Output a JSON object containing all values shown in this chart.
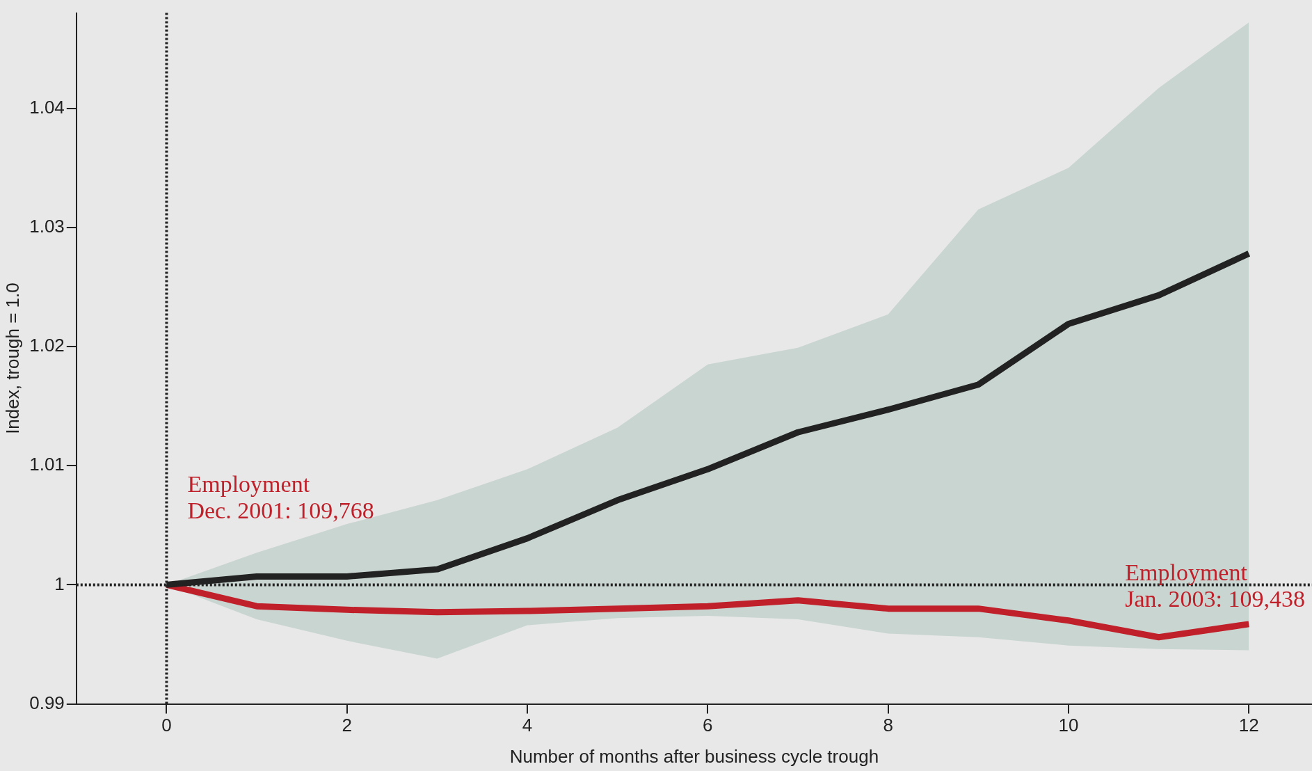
{
  "chart_data": {
    "type": "line",
    "xlabel": "Number of months after business cycle trough",
    "ylabel": "Index, trough = 1.0",
    "x": [
      0,
      1,
      2,
      3,
      4,
      5,
      6,
      7,
      8,
      9,
      10,
      11,
      12
    ],
    "series": [
      {
        "color": "#222222",
        "values": [
          1.0,
          1.0007,
          1.0007,
          1.0013,
          1.0039,
          1.0071,
          1.0097,
          1.0128,
          1.0147,
          1.0168,
          1.0219,
          1.0243,
          1.0278
        ],
        "lower": [
          1.0,
          0.9971,
          0.9953,
          0.9938,
          0.9966,
          0.9972,
          0.9974,
          0.9971,
          0.9959,
          0.9956,
          0.9949,
          0.9946,
          0.9945
        ],
        "upper": [
          1.0,
          1.0027,
          1.0051,
          1.0071,
          1.0097,
          1.0132,
          1.0185,
          1.0199,
          1.0227,
          1.0315,
          1.035,
          1.0417,
          1.0472
        ]
      },
      {
        "color": "#c0202a",
        "values": [
          1.0,
          0.9982,
          0.9979,
          0.9977,
          0.9978,
          0.998,
          0.9982,
          0.9987,
          0.998,
          0.998,
          0.997,
          0.9956,
          0.9967
        ]
      }
    ],
    "xlim": [
      -1,
      12.7
    ],
    "xticks": [
      0,
      2,
      4,
      6,
      8,
      10,
      12
    ],
    "ylim": [
      0.99,
      1.048
    ],
    "yticks": [
      0.99,
      1,
      1.01,
      1.02,
      1.03,
      1.04
    ],
    "ref_lines": [
      {
        "axis": "x",
        "value": 0,
        "line_style": "dotted"
      },
      {
        "axis": "y",
        "value": 1,
        "line_style": "dotted"
      }
    ],
    "annotations": [
      {
        "text": "Employment\nDec. 2001: 109,768",
        "x": 0,
        "y": 1.0
      },
      {
        "text": "Employment\nJan. 2003: 109,438",
        "x": 12,
        "y": 0.9967
      }
    ],
    "grid": false,
    "legend": false,
    "marker": "none",
    "line_style": "solid"
  }
}
